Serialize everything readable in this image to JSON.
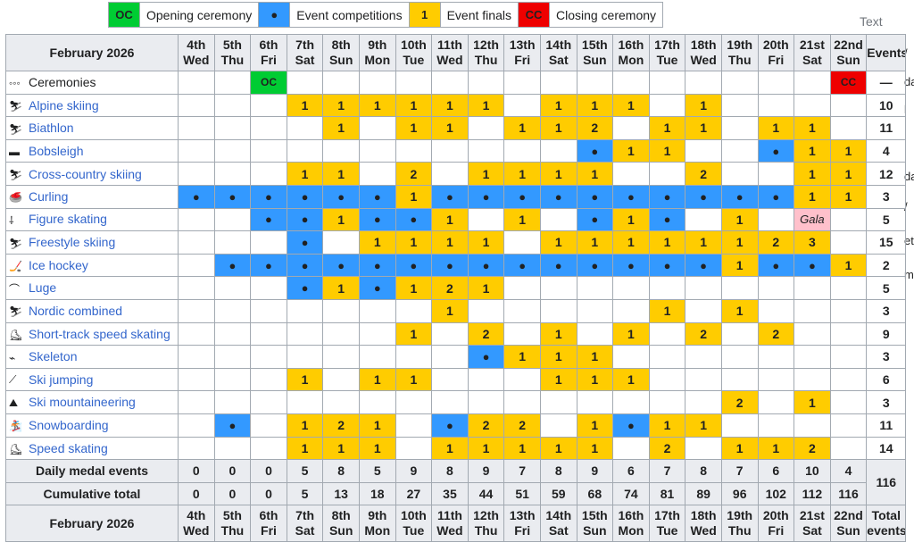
{
  "legend": [
    {
      "code": "OC",
      "label": "Opening ceremony",
      "color": "#00cc33"
    },
    {
      "code": "●",
      "label": "Event competitions",
      "color": "#3399ff"
    },
    {
      "code": "1",
      "label": "Event finals",
      "color": "#ffcc00"
    },
    {
      "code": "CC",
      "label": "Closing ceremony",
      "color": "#ee0000"
    }
  ],
  "side_text": "Text",
  "header": {
    "corner": "February 2026",
    "days": [
      {
        "num": "4th",
        "dow": "Wed"
      },
      {
        "num": "5th",
        "dow": "Thu"
      },
      {
        "num": "6th",
        "dow": "Fri"
      },
      {
        "num": "7th",
        "dow": "Sat"
      },
      {
        "num": "8th",
        "dow": "Sun"
      },
      {
        "num": "9th",
        "dow": "Mon"
      },
      {
        "num": "10th",
        "dow": "Tue"
      },
      {
        "num": "11th",
        "dow": "Wed"
      },
      {
        "num": "12th",
        "dow": "Thu"
      },
      {
        "num": "13th",
        "dow": "Fri"
      },
      {
        "num": "14th",
        "dow": "Sat"
      },
      {
        "num": "15th",
        "dow": "Sun"
      },
      {
        "num": "16th",
        "dow": "Mon"
      },
      {
        "num": "17th",
        "dow": "Tue"
      },
      {
        "num": "18th",
        "dow": "Wed"
      },
      {
        "num": "19th",
        "dow": "Thu"
      },
      {
        "num": "20th",
        "dow": "Fri"
      },
      {
        "num": "21st",
        "dow": "Sat"
      },
      {
        "num": "22nd",
        "dow": "Sun"
      }
    ],
    "events_label": "Events"
  },
  "rows": [
    {
      "name": "Ceremonies",
      "icon": "olympic-rings-icon",
      "link": false,
      "cells": [
        "",
        "",
        "OC",
        "",
        "",
        "",
        "",
        "",
        "",
        "",
        "",
        "",
        "",
        "",
        "",
        "",
        "",
        "",
        "CC"
      ],
      "total": "—"
    },
    {
      "name": "Alpine skiing",
      "icon": "alpine-skiing-icon",
      "link": true,
      "cells": [
        "",
        "",
        "",
        "1",
        "1",
        "1",
        "1",
        "1",
        "1",
        "",
        "1",
        "1",
        "1",
        "",
        "1",
        "",
        "",
        "",
        ""
      ],
      "total": "10"
    },
    {
      "name": "Biathlon",
      "icon": "biathlon-icon",
      "link": true,
      "cells": [
        "",
        "",
        "",
        "",
        "1",
        "",
        "1",
        "1",
        "",
        "1",
        "1",
        "2",
        "",
        "1",
        "1",
        "",
        "1",
        "1",
        ""
      ],
      "total": "11"
    },
    {
      "name": "Bobsleigh",
      "icon": "bobsleigh-icon",
      "link": true,
      "cells": [
        "",
        "",
        "",
        "",
        "",
        "",
        "",
        "",
        "",
        "",
        "",
        "●",
        "1",
        "1",
        "",
        "",
        "●",
        "1",
        "1"
      ],
      "total": "4"
    },
    {
      "name": "Cross-country skiing",
      "icon": "cross-country-skiing-icon",
      "link": true,
      "cells": [
        "",
        "",
        "",
        "1",
        "1",
        "",
        "2",
        "",
        "1",
        "1",
        "1",
        "1",
        "",
        "",
        "2",
        "",
        "",
        "1",
        "1"
      ],
      "total": "12"
    },
    {
      "name": "Curling",
      "icon": "curling-icon",
      "link": true,
      "cells": [
        "●",
        "●",
        "●",
        "●",
        "●",
        "●",
        "1",
        "●",
        "●",
        "●",
        "●",
        "●",
        "●",
        "●",
        "●",
        "●",
        "●",
        "1",
        "1"
      ],
      "total": "3"
    },
    {
      "name": "Figure skating",
      "icon": "figure-skating-icon",
      "link": true,
      "cells": [
        "",
        "",
        "●",
        "●",
        "1",
        "●",
        "●",
        "1",
        "",
        "1",
        "",
        "●",
        "1",
        "●",
        "",
        "1",
        "",
        "Gala",
        ""
      ],
      "total": "5"
    },
    {
      "name": "Freestyle skiing",
      "icon": "freestyle-skiing-icon",
      "link": true,
      "cells": [
        "",
        "",
        "",
        "●",
        "",
        "1",
        "1",
        "1",
        "1",
        "",
        "1",
        "1",
        "1",
        "1",
        "1",
        "1",
        "2",
        "3",
        ""
      ],
      "total": "15"
    },
    {
      "name": "Ice hockey",
      "icon": "ice-hockey-icon",
      "link": true,
      "cells": [
        "",
        "●",
        "●",
        "●",
        "●",
        "●",
        "●",
        "●",
        "●",
        "●",
        "●",
        "●",
        "●",
        "●",
        "●",
        "1",
        "●",
        "●",
        "1"
      ],
      "total": "2"
    },
    {
      "name": "Luge",
      "icon": "luge-icon",
      "link": true,
      "cells": [
        "",
        "",
        "",
        "●",
        "1",
        "●",
        "1",
        "2",
        "1",
        "",
        "",
        "",
        "",
        "",
        "",
        "",
        "",
        "",
        ""
      ],
      "total": "5"
    },
    {
      "name": "Nordic combined",
      "icon": "nordic-combined-icon",
      "link": true,
      "cells": [
        "",
        "",
        "",
        "",
        "",
        "",
        "",
        "1",
        "",
        "",
        "",
        "",
        "",
        "1",
        "",
        "1",
        "",
        "",
        ""
      ],
      "total": "3"
    },
    {
      "name": "Short-track speed skating",
      "icon": "short-track-icon",
      "link": true,
      "cells": [
        "",
        "",
        "",
        "",
        "",
        "",
        "1",
        "",
        "2",
        "",
        "1",
        "",
        "1",
        "",
        "2",
        "",
        "2",
        "",
        ""
      ],
      "total": "9"
    },
    {
      "name": "Skeleton",
      "icon": "skeleton-icon",
      "link": true,
      "cells": [
        "",
        "",
        "",
        "",
        "",
        "",
        "",
        "",
        "●",
        "1",
        "1",
        "1",
        "",
        "",
        "",
        "",
        "",
        "",
        ""
      ],
      "total": "3"
    },
    {
      "name": "Ski jumping",
      "icon": "ski-jumping-icon",
      "link": true,
      "cells": [
        "",
        "",
        "",
        "1",
        "",
        "1",
        "1",
        "",
        "",
        "",
        "1",
        "1",
        "1",
        "",
        "",
        "",
        "",
        "",
        ""
      ],
      "total": "6"
    },
    {
      "name": "Ski mountaineering",
      "icon": "ski-mountaineering-icon",
      "link": true,
      "cells": [
        "",
        "",
        "",
        "",
        "",
        "",
        "",
        "",
        "",
        "",
        "",
        "",
        "",
        "",
        "",
        "2",
        "",
        "1",
        ""
      ],
      "total": "3"
    },
    {
      "name": "Snowboarding",
      "icon": "snowboarding-icon",
      "link": true,
      "cells": [
        "",
        "●",
        "",
        "1",
        "2",
        "1",
        "",
        "●",
        "2",
        "2",
        "",
        "1",
        "●",
        "1",
        "1",
        "",
        "",
        "",
        ""
      ],
      "total": "11"
    },
    {
      "name": "Speed skating",
      "icon": "speed-skating-icon",
      "link": true,
      "cells": [
        "",
        "",
        "",
        "1",
        "1",
        "1",
        "",
        "1",
        "1",
        "1",
        "1",
        "1",
        "",
        "2",
        "",
        "1",
        "1",
        "2",
        ""
      ],
      "total": "14"
    }
  ],
  "daily": {
    "label": "Daily medal events",
    "values": [
      "0",
      "0",
      "0",
      "5",
      "8",
      "5",
      "9",
      "8",
      "9",
      "7",
      "8",
      "9",
      "6",
      "7",
      "8",
      "7",
      "6",
      "10",
      "4"
    ]
  },
  "cumulative": {
    "label": "Cumulative total",
    "values": [
      "0",
      "0",
      "0",
      "5",
      "13",
      "18",
      "27",
      "35",
      "44",
      "51",
      "59",
      "68",
      "74",
      "81",
      "89",
      "96",
      "102",
      "112",
      "116"
    ]
  },
  "grand_total": "116",
  "footer": {
    "corner": "February 2026",
    "total_label": "Total",
    "total_label2": "events"
  }
}
